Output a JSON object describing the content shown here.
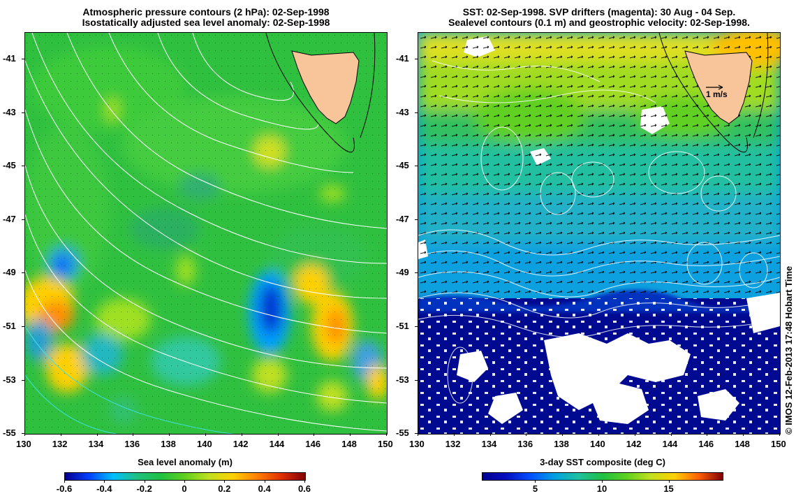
{
  "left_panel": {
    "title_line1": "Atmospheric pressure contours (2 hPa): 02-Sep-1998",
    "title_line2": "Isostatically adjusted sea level anomaly: 02-Sep-1998",
    "lat_ticks": [
      "-41",
      "-43",
      "-45",
      "-47",
      "-49",
      "-51",
      "-53",
      "-55"
    ],
    "lon_ticks": [
      "130",
      "132",
      "134",
      "136",
      "138",
      "140",
      "142",
      "144",
      "146",
      "148",
      "150"
    ],
    "colorbar_label": "Sea level anomaly (m)",
    "colorbar_ticks": [
      "-0.6",
      "-0.4",
      "-0.2",
      "0",
      "0.2",
      "0.4",
      "0.6"
    ]
  },
  "right_panel": {
    "title_line1": "SST: 02-Sep-1998. SVP drifters (magenta): 30 Aug - 04 Sep.",
    "title_line2": "Sealevel contours (0.1 m) and geostrophic velocity: 02-Sep-1998.",
    "lat_ticks": [
      "-41",
      "-43",
      "-45",
      "-47",
      "-49",
      "-51",
      "-53",
      "-55"
    ],
    "lon_ticks": [
      "130",
      "132",
      "134",
      "136",
      "138",
      "140",
      "142",
      "144",
      "146",
      "148",
      "150"
    ],
    "velocity_scale_label": "1 m/s",
    "colorbar_label": "3-day SST composite (deg C)",
    "colorbar_ticks": [
      "5",
      "10",
      "15"
    ]
  },
  "credit": "© IMOS 12-Feb-2013 17:48 Hobart Time",
  "colors": {
    "land": "#f8c59a",
    "ssl_colormap": [
      "#00008f",
      "#0040ff",
      "#00bfff",
      "#20c080",
      "#20c040",
      "#60d020",
      "#c0e020",
      "#ffd000",
      "#ff8000",
      "#e03000",
      "#800000"
    ],
    "sst_colormap": [
      "#00008f",
      "#0010c0",
      "#0050ff",
      "#00a0e0",
      "#20c0a0",
      "#20c040",
      "#60d020",
      "#c0e020",
      "#ffd000",
      "#ff6000",
      "#800000"
    ]
  }
}
